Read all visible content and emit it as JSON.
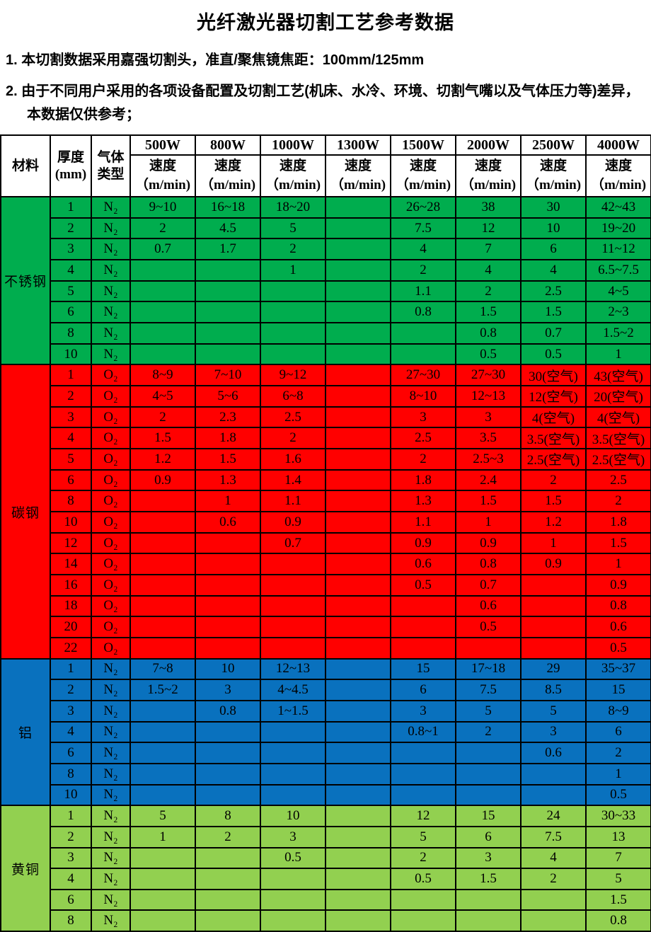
{
  "title": "光纤激光器切割工艺参考数据",
  "notes": [
    "1. 本切割数据采用嘉强切割头，准直/聚焦镜焦距：100mm/125mm",
    "2. 由于不同用户采用的各项设备配置及切割工艺(机床、水冷、环境、切割气嘴以及气体压力等)差异，本数据仅供参考；"
  ],
  "table": {
    "header": {
      "material": "材料",
      "thickness_line1": "厚度",
      "thickness_line2": "(mm)",
      "gas_line1": "气体",
      "gas_line2": "类型",
      "power_columns": [
        "500W",
        "800W",
        "1000W",
        "1300W",
        "1500W",
        "2000W",
        "2500W",
        "4000W"
      ],
      "speed_line1": "速度",
      "speed_line2": "（m/min)"
    },
    "sections": [
      {
        "material": "不锈钢",
        "color": "#00AD4E",
        "rows": [
          {
            "thickness": "1",
            "gas": "N₂",
            "speeds": [
              "9~10",
              "16~18",
              "18~20",
              "",
              "26~28",
              "38",
              "30",
              "42~43"
            ]
          },
          {
            "thickness": "2",
            "gas": "N₂",
            "speeds": [
              "2",
              "4.5",
              "5",
              "",
              "7.5",
              "12",
              "10",
              "19~20"
            ]
          },
          {
            "thickness": "3",
            "gas": "N₂",
            "speeds": [
              "0.7",
              "1.7",
              "2",
              "",
              "4",
              "7",
              "6",
              "11~12"
            ]
          },
          {
            "thickness": "4",
            "gas": "N₂",
            "speeds": [
              "",
              "",
              "1",
              "",
              "2",
              "4",
              "4",
              "6.5~7.5"
            ]
          },
          {
            "thickness": "5",
            "gas": "N₂",
            "speeds": [
              "",
              "",
              "",
              "",
              "1.1",
              "2",
              "2.5",
              "4~5"
            ]
          },
          {
            "thickness": "6",
            "gas": "N₂",
            "speeds": [
              "",
              "",
              "",
              "",
              "0.8",
              "1.5",
              "1.5",
              "2~3"
            ]
          },
          {
            "thickness": "8",
            "gas": "N₂",
            "speeds": [
              "",
              "",
              "",
              "",
              "",
              "0.8",
              "0.7",
              "1.5~2"
            ]
          },
          {
            "thickness": "10",
            "gas": "N₂",
            "speeds": [
              "",
              "",
              "",
              "",
              "",
              "0.5",
              "0.5",
              "1"
            ]
          }
        ]
      },
      {
        "material": "碳钢",
        "color": "#FF0000",
        "rows": [
          {
            "thickness": "1",
            "gas": "O₂",
            "speeds": [
              "8~9",
              "7~10",
              "9~12",
              "",
              "27~30",
              "27~30",
              "30(空气)",
              "43(空气)"
            ]
          },
          {
            "thickness": "2",
            "gas": "O₂",
            "speeds": [
              "4~5",
              "5~6",
              "6~8",
              "",
              "8~10",
              "12~13",
              "12(空气)",
              "20(空气)"
            ]
          },
          {
            "thickness": "3",
            "gas": "O₂",
            "speeds": [
              "2",
              "2.3",
              "2.5",
              "",
              "3",
              "3",
              "4(空气)",
              "4(空气)"
            ]
          },
          {
            "thickness": "4",
            "gas": "O₂",
            "speeds": [
              "1.5",
              "1.8",
              "2",
              "",
              "2.5",
              "3.5",
              "3.5(空气)",
              "3.5(空气)"
            ]
          },
          {
            "thickness": "5",
            "gas": "O₂",
            "speeds": [
              "1.2",
              "1.5",
              "1.6",
              "",
              "2",
              "2.5~3",
              "2.5(空气)",
              "2.5(空气)"
            ]
          },
          {
            "thickness": "6",
            "gas": "O₂",
            "speeds": [
              "0.9",
              "1.3",
              "1.4",
              "",
              "1.8",
              "2.4",
              "2",
              "2.5"
            ]
          },
          {
            "thickness": "8",
            "gas": "O₂",
            "speeds": [
              "",
              "1",
              "1.1",
              "",
              "1.3",
              "1.5",
              "1.5",
              "2"
            ]
          },
          {
            "thickness": "10",
            "gas": "O₂",
            "speeds": [
              "",
              "0.6",
              "0.9",
              "",
              "1.1",
              "1",
              "1.2",
              "1.8"
            ]
          },
          {
            "thickness": "12",
            "gas": "O₂",
            "speeds": [
              "",
              "",
              "0.7",
              "",
              "0.9",
              "0.9",
              "1",
              "1.5"
            ]
          },
          {
            "thickness": "14",
            "gas": "O₂",
            "speeds": [
              "",
              "",
              "",
              "",
              "0.6",
              "0.8",
              "0.9",
              "1"
            ]
          },
          {
            "thickness": "16",
            "gas": "O₂",
            "speeds": [
              "",
              "",
              "",
              "",
              "0.5",
              "0.7",
              "",
              "0.9"
            ]
          },
          {
            "thickness": "18",
            "gas": "O₂",
            "speeds": [
              "",
              "",
              "",
              "",
              "",
              "0.6",
              "",
              "0.8"
            ]
          },
          {
            "thickness": "20",
            "gas": "O₂",
            "speeds": [
              "",
              "",
              "",
              "",
              "",
              "0.5",
              "",
              "0.6"
            ]
          },
          {
            "thickness": "22",
            "gas": "O₂",
            "speeds": [
              "",
              "",
              "",
              "",
              "",
              "",
              "",
              "0.5"
            ]
          }
        ]
      },
      {
        "material": "铝",
        "color": "#0971BE",
        "rows": [
          {
            "thickness": "1",
            "gas": "N₂",
            "speeds": [
              "7~8",
              "10",
              "12~13",
              "",
              "15",
              "17~18",
              "29",
              "35~37"
            ]
          },
          {
            "thickness": "2",
            "gas": "N₂",
            "speeds": [
              "1.5~2",
              "3",
              "4~4.5",
              "",
              "6",
              "7.5",
              "8.5",
              "15"
            ]
          },
          {
            "thickness": "3",
            "gas": "N₂",
            "speeds": [
              "",
              "0.8",
              "1~1.5",
              "",
              "3",
              "5",
              "5",
              "8~9"
            ]
          },
          {
            "thickness": "4",
            "gas": "N₂",
            "speeds": [
              "",
              "",
              "",
              "",
              "0.8~1",
              "2",
              "3",
              "6"
            ]
          },
          {
            "thickness": "6",
            "gas": "N₂",
            "speeds": [
              "",
              "",
              "",
              "",
              "",
              "",
              "0.6",
              "2"
            ]
          },
          {
            "thickness": "8",
            "gas": "N₂",
            "speeds": [
              "",
              "",
              "",
              "",
              "",
              "",
              "",
              "1"
            ]
          },
          {
            "thickness": "10",
            "gas": "N₂",
            "speeds": [
              "",
              "",
              "",
              "",
              "",
              "",
              "",
              "0.5"
            ]
          }
        ]
      },
      {
        "material": "黄铜",
        "color": "#92D050",
        "rows": [
          {
            "thickness": "1",
            "gas": "N₂",
            "speeds": [
              "5",
              "8",
              "10",
              "",
              "12",
              "15",
              "24",
              "30~33"
            ]
          },
          {
            "thickness": "2",
            "gas": "N₂",
            "speeds": [
              "1",
              "2",
              "3",
              "",
              "5",
              "6",
              "7.5",
              "13"
            ]
          },
          {
            "thickness": "3",
            "gas": "N₂",
            "speeds": [
              "",
              "",
              "0.5",
              "",
              "2",
              "3",
              "4",
              "7"
            ]
          },
          {
            "thickness": "4",
            "gas": "N₂",
            "speeds": [
              "",
              "",
              "",
              "",
              "0.5",
              "1.5",
              "2",
              "5"
            ]
          },
          {
            "thickness": "6",
            "gas": "N₂",
            "speeds": [
              "",
              "",
              "",
              "",
              "",
              "",
              "",
              "1.5"
            ]
          },
          {
            "thickness": "8",
            "gas": "N₂",
            "speeds": [
              "",
              "",
              "",
              "",
              "",
              "",
              "",
              "0.8"
            ]
          }
        ]
      }
    ]
  }
}
